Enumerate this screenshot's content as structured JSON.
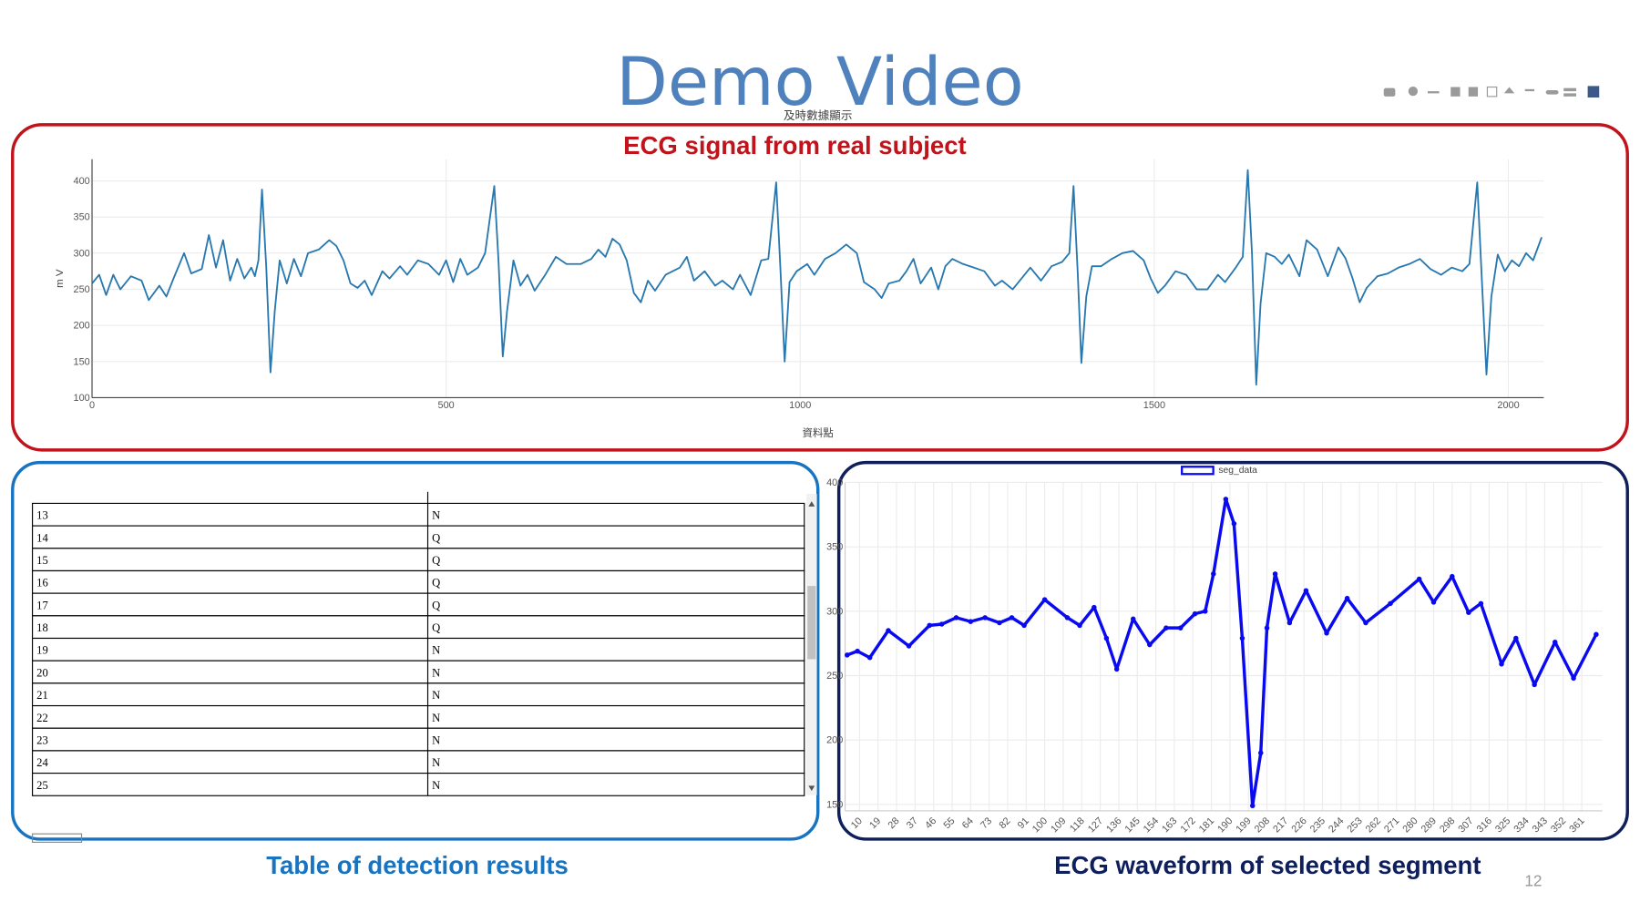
{
  "title": "Demo Video",
  "page_number": 12,
  "chart_data": [
    {
      "type": "line",
      "title": "及時數據顯示",
      "annotation": "ECG signal from real subject",
      "x_label": "資料點",
      "y_label": "m V",
      "color": "#2878b0",
      "grid": true,
      "xlim": [
        0,
        2050
      ],
      "ylim": [
        100,
        430
      ],
      "xticks": [
        0,
        500,
        1000,
        1500,
        2000
      ],
      "yticks": [
        100,
        150,
        200,
        250,
        300,
        350,
        400
      ],
      "x": [
        0,
        10,
        20,
        30,
        40,
        55,
        70,
        80,
        95,
        105,
        115,
        130,
        140,
        155,
        165,
        175,
        185,
        195,
        205,
        215,
        225,
        230,
        235,
        240,
        246,
        252,
        258,
        265,
        275,
        285,
        295,
        305,
        320,
        335,
        345,
        355,
        365,
        375,
        385,
        395,
        410,
        420,
        435,
        445,
        460,
        475,
        490,
        500,
        510,
        520,
        530,
        545,
        555,
        568,
        574,
        580,
        586,
        595,
        605,
        615,
        625,
        640,
        655,
        670,
        690,
        705,
        715,
        725,
        735,
        745,
        755,
        765,
        775,
        785,
        795,
        810,
        830,
        840,
        850,
        865,
        880,
        890,
        905,
        915,
        930,
        945,
        955,
        966,
        972,
        978,
        985,
        995,
        1010,
        1020,
        1035,
        1050,
        1065,
        1080,
        1090,
        1105,
        1115,
        1125,
        1140,
        1150,
        1160,
        1170,
        1185,
        1195,
        1205,
        1215,
        1230,
        1245,
        1260,
        1275,
        1285,
        1300,
        1315,
        1325,
        1340,
        1355,
        1370,
        1380,
        1386,
        1392,
        1397,
        1404,
        1412,
        1425,
        1440,
        1455,
        1470,
        1485,
        1495,
        1505,
        1515,
        1530,
        1545,
        1560,
        1575,
        1590,
        1600,
        1615,
        1625,
        1632,
        1638,
        1644,
        1650,
        1658,
        1670,
        1680,
        1690,
        1705,
        1715,
        1730,
        1745,
        1760,
        1770,
        1780,
        1790,
        1800,
        1815,
        1830,
        1845,
        1860,
        1875,
        1890,
        1905,
        1920,
        1935,
        1945,
        1956,
        1962,
        1969,
        1976,
        1985,
        1995,
        2005,
        2015,
        2025,
        2035,
        2047
      ],
      "values": [
        258,
        270,
        242,
        270,
        250,
        268,
        262,
        235,
        255,
        240,
        265,
        300,
        272,
        278,
        325,
        280,
        318,
        262,
        292,
        265,
        280,
        268,
        290,
        388,
        280,
        135,
        220,
        290,
        258,
        292,
        268,
        300,
        305,
        318,
        310,
        290,
        258,
        252,
        262,
        242,
        275,
        265,
        282,
        270,
        290,
        285,
        270,
        290,
        260,
        292,
        270,
        280,
        300,
        393,
        290,
        157,
        220,
        290,
        255,
        270,
        248,
        270,
        295,
        285,
        285,
        292,
        305,
        295,
        320,
        312,
        290,
        245,
        232,
        262,
        248,
        270,
        280,
        295,
        262,
        275,
        255,
        262,
        250,
        270,
        242,
        290,
        292,
        398,
        280,
        150,
        260,
        275,
        285,
        270,
        292,
        300,
        312,
        300,
        260,
        250,
        238,
        258,
        262,
        275,
        292,
        258,
        280,
        250,
        282,
        292,
        285,
        280,
        275,
        255,
        262,
        250,
        268,
        280,
        262,
        282,
        288,
        300,
        393,
        270,
        148,
        240,
        282,
        282,
        292,
        300,
        303,
        290,
        265,
        245,
        255,
        275,
        270,
        250,
        250,
        270,
        260,
        280,
        295,
        415,
        300,
        118,
        230,
        300,
        295,
        285,
        298,
        268,
        318,
        305,
        268,
        308,
        293,
        265,
        232,
        252,
        268,
        272,
        280,
        285,
        292,
        278,
        270,
        280,
        275,
        285,
        398,
        275,
        132,
        240,
        298,
        275,
        290,
        282,
        300,
        290,
        322
      ]
    },
    {
      "type": "line",
      "caption": "ECG waveform of selected segment",
      "grid": true,
      "markers": true,
      "xlim": [
        3,
        371
      ],
      "ylim": [
        145,
        400
      ],
      "xticks": [
        10,
        19,
        28,
        37,
        46,
        55,
        64,
        73,
        82,
        91,
        100,
        109,
        118,
        127,
        136,
        145,
        154,
        163,
        172,
        181,
        190,
        199,
        208,
        217,
        226,
        235,
        244,
        253,
        262,
        271,
        280,
        289,
        298,
        307,
        316,
        325,
        334,
        343,
        352,
        361
      ],
      "yticks": [
        150,
        200,
        250,
        300,
        350,
        400
      ],
      "x": [
        4,
        9,
        15,
        24,
        34,
        44,
        50,
        57,
        64,
        71,
        78,
        84,
        90,
        100,
        111,
        117,
        124,
        130,
        135,
        143,
        151,
        159,
        166,
        173,
        178,
        182,
        188,
        192,
        196,
        201,
        205,
        208,
        212,
        219,
        227,
        237,
        247,
        256,
        268,
        282,
        289,
        298,
        306,
        312,
        322,
        329,
        338,
        348,
        357,
        368
      ],
      "series": [
        {
          "name": "seg_data",
          "color": "#0a0af0",
          "values": [
            266,
            269,
            264,
            285,
            273,
            289,
            290,
            295,
            292,
            295,
            291,
            295,
            289,
            309,
            295,
            289,
            303,
            279,
            255,
            294,
            274,
            287,
            287,
            298,
            300,
            329,
            387,
            368,
            279,
            149,
            190,
            287,
            329,
            291,
            316,
            283,
            310,
            291,
            306,
            325,
            307,
            327,
            299,
            306,
            259,
            279,
            243,
            276,
            248,
            282
          ]
        }
      ]
    }
  ],
  "table": {
    "caption": "Table of detection results",
    "rows": [
      [
        "13",
        "N"
      ],
      [
        "14",
        "Q"
      ],
      [
        "15",
        "Q"
      ],
      [
        "16",
        "Q"
      ],
      [
        "17",
        "Q"
      ],
      [
        "18",
        "Q"
      ],
      [
        "19",
        "N"
      ],
      [
        "20",
        "N"
      ],
      [
        "21",
        "N"
      ],
      [
        "22",
        "N"
      ],
      [
        "23",
        "N"
      ],
      [
        "24",
        "N"
      ],
      [
        "25",
        "N"
      ]
    ]
  }
}
